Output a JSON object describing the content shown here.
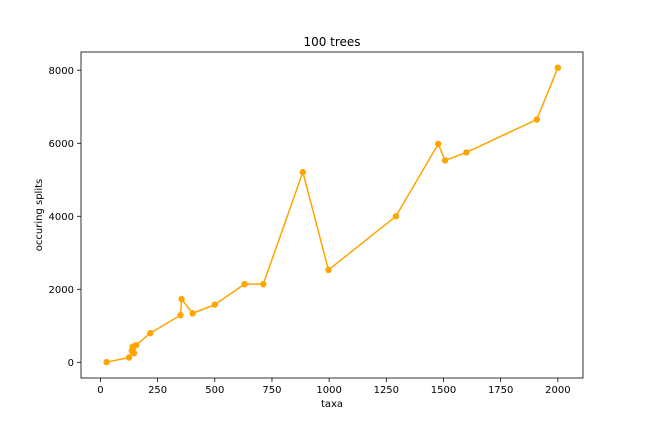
{
  "chart_data": {
    "type": "line",
    "title": "100 trees",
    "xlabel": "taxa",
    "ylabel": "occuring splits",
    "xlim": [
      -85,
      2110
    ],
    "ylim": [
      -430,
      8500
    ],
    "xticks": [
      0,
      250,
      500,
      750,
      1000,
      1250,
      1500,
      1750,
      2000
    ],
    "yticks": [
      0,
      2000,
      4000,
      6000,
      8000
    ],
    "xtick_labels": [
      "0",
      "250",
      "500",
      "750",
      "1000",
      "1250",
      "1500",
      "1750",
      "2000"
    ],
    "ytick_labels": [
      "0",
      "2000",
      "4000",
      "6000",
      "8000"
    ],
    "grid": false,
    "series": [
      {
        "color": "#FFA500",
        "marker": "circle",
        "x": [
          27,
          125,
          137,
          141,
          147,
          156,
          218,
          350,
          355,
          403,
          500,
          630,
          712,
          885,
          997,
          1292,
          1477,
          1507,
          1600,
          1908,
          2000
        ],
        "y": [
          5,
          130,
          320,
          430,
          250,
          470,
          800,
          1290,
          1730,
          1340,
          1580,
          2140,
          2140,
          5210,
          2530,
          4000,
          5980,
          5530,
          5750,
          6650,
          8070
        ]
      }
    ]
  }
}
